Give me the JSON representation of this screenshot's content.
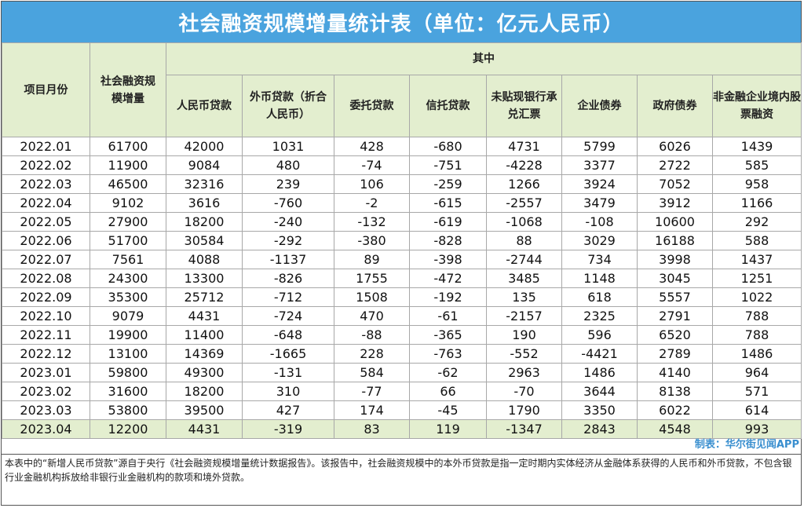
{
  "title": "社会融资规模增量统计表（单位：亿元人民币）",
  "headers": {
    "month": "项目月份",
    "total": "社会融资规模增量",
    "group": "其中",
    "rmb_loans": "人民币贷款",
    "fx_loans": "外币贷款（折合人民币）",
    "entrusted": "委托贷款",
    "trust": "信托贷款",
    "bankers_acceptance": "未贴现银行承兑汇票",
    "corp_bonds": "企业债券",
    "gov_bonds": "政府债券",
    "equity": "非金融企业境内股票融资"
  },
  "rows": [
    [
      "2022.01",
      "61700",
      "42000",
      "1031",
      "428",
      "-680",
      "4731",
      "5799",
      "6026",
      "1439"
    ],
    [
      "2022.02",
      "11900",
      "9084",
      "480",
      "-74",
      "-751",
      "-4228",
      "3377",
      "2722",
      "585"
    ],
    [
      "2022.03",
      "46500",
      "32316",
      "239",
      "106",
      "-259",
      "1266",
      "3924",
      "7052",
      "958"
    ],
    [
      "2022.04",
      "9102",
      "3616",
      "-760",
      "-2",
      "-615",
      "-2557",
      "3479",
      "3912",
      "1166"
    ],
    [
      "2022.05",
      "27900",
      "18200",
      "-240",
      "-132",
      "-619",
      "-1068",
      "-108",
      "10600",
      "292"
    ],
    [
      "2022.06",
      "51700",
      "30584",
      "-292",
      "-380",
      "-828",
      "88",
      "3029",
      "16188",
      "588"
    ],
    [
      "2022.07",
      "7561",
      "4088",
      "-1137",
      "89",
      "-398",
      "-2744",
      "734",
      "3998",
      "1437"
    ],
    [
      "2022.08",
      "24300",
      "13300",
      "-826",
      "1755",
      "-472",
      "3485",
      "1148",
      "3045",
      "1251"
    ],
    [
      "2022.09",
      "35300",
      "25712",
      "-712",
      "1508",
      "-192",
      "135",
      "618",
      "5557",
      "1022"
    ],
    [
      "2022.10",
      "9079",
      "4431",
      "-724",
      "470",
      "-61",
      "-2157",
      "2325",
      "2791",
      "788"
    ],
    [
      "2022.11",
      "19900",
      "11400",
      "-648",
      "-88",
      "-365",
      "190",
      "596",
      "6520",
      "788"
    ],
    [
      "2022.12",
      "13100",
      "14369",
      "-1665",
      "228",
      "-763",
      "-552",
      "-4421",
      "2789",
      "1486"
    ],
    [
      "2023.01",
      "59800",
      "49300",
      "-131",
      "584",
      "-62",
      "2963",
      "1486",
      "4140",
      "964"
    ],
    [
      "2023.02",
      "31600",
      "18200",
      "310",
      "-77",
      "66",
      "-70",
      "3644",
      "8138",
      "571"
    ],
    [
      "2023.03",
      "53800",
      "39500",
      "427",
      "174",
      "-45",
      "1790",
      "3350",
      "6022",
      "614"
    ],
    [
      "2023.04",
      "12200",
      "4431",
      "-319",
      "83",
      "119",
      "-1347",
      "2843",
      "4548",
      "993"
    ]
  ],
  "credit": "制表：华尔街见闻APP",
  "note": "本表中的“新增人民币贷款”源自于央行《社会融资规模增量统计数据报告》。该报告中，社会融资规模中的本外币贷款是指一定时期内实体经济从金融体系获得的人民币和外币贷款，不包含银行业金融机构拆放给非银行业金融机构的款项和境外贷款。",
  "colors": {
    "title_bg": "#4aa3de",
    "header_bg": "#e3eecf",
    "credit_text": "#3a8fcf"
  }
}
